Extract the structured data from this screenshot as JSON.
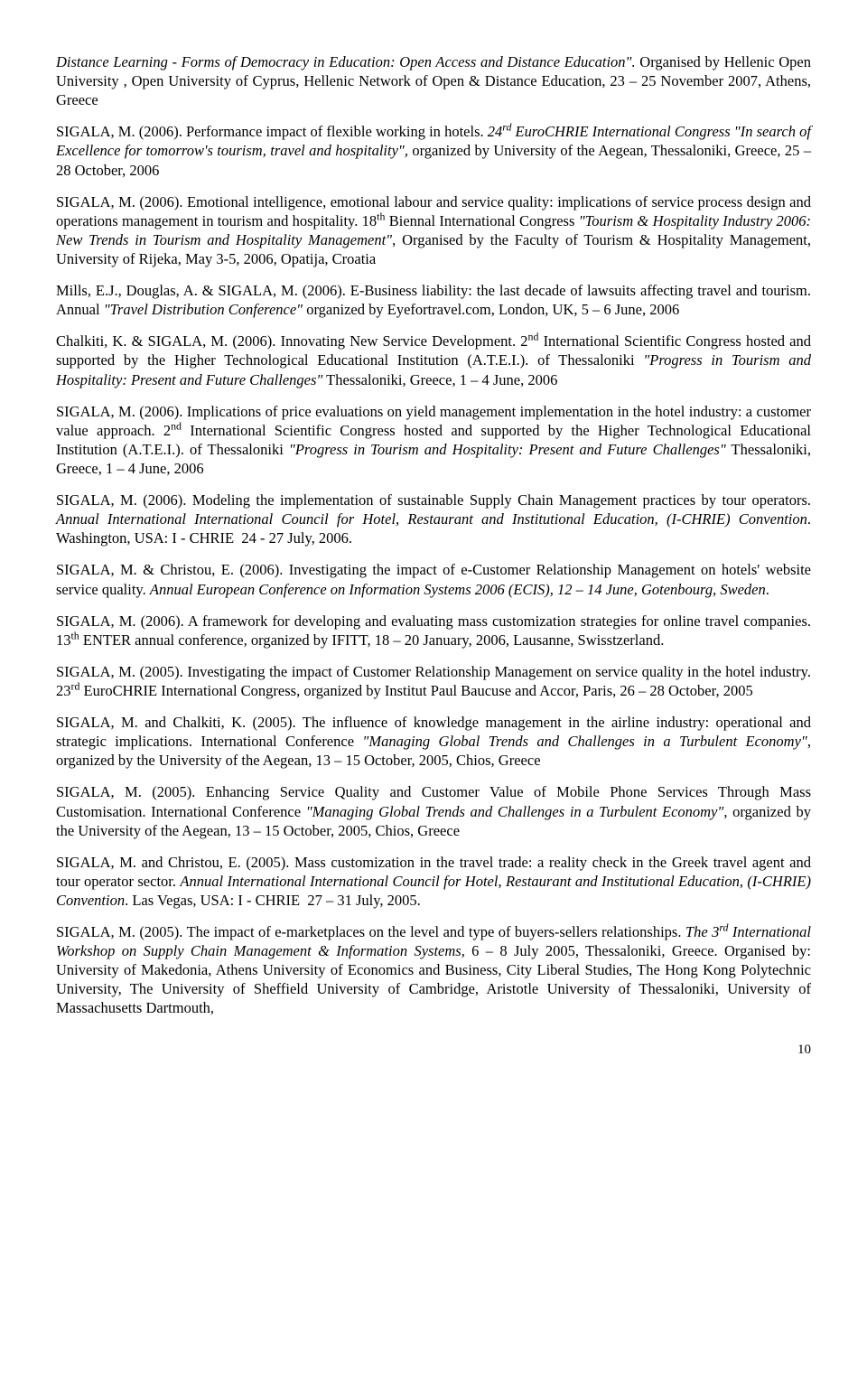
{
  "page_number": "10",
  "paragraphs": [
    {
      "html": "<span class=\"italic\">Distance Learning - Forms of Democracy in Education: Open Access and Distance Education\".</span> Organised by Hellenic Open University , Open University of Cyprus, Hellenic Network of Open & Distance Education, 23 – 25 November 2007, Athens, Greece"
    },
    {
      "html": "SIGALA, M. (2006). Performance impact of flexible working in hotels. <span class=\"italic\">24<sup>rd</sup> EuroCHRIE International Congress \"In search of Excellence for tomorrow's tourism, travel and hospitality\",</span> organized by University of the Aegean, Thessaloniki, Greece, 25 – 28 October, 2006"
    },
    {
      "html": "SIGALA, M. (2006). Emotional intelligence, emotional labour and service quality: implications of service process design and operations management in tourism and hospitality. 18<sup>th</sup> Biennal International Congress <span class=\"italic\">\"Tourism &amp; Hospitality Industry 2006: New Trends in Tourism and Hospitality Management\"</span>, Organised by the Faculty of Tourism & Hospitality Management, University of Rijeka, May 3-5, 2006, Opatija, Croatia"
    },
    {
      "html": "Mills, E.J., Douglas, A. & SIGALA, M. (2006). E-Business liability: the last decade of lawsuits affecting travel and tourism. Annual <span class=\"italic\">\"Travel Distribution Conference\"</span> organized by Eyefortravel.com, London, UK, 5 – 6 June, 2006"
    },
    {
      "html": "Chalkiti, K. & SIGALA, M. (2006). Innovating New Service Development. 2<sup>nd</sup> International Scientific Congress hosted and supported by the Higher Technological Educational Institution (A.T.E.I.). of Thessaloniki <span class=\"italic\">\"Progress in Tourism and Hospitality: Present and Future Challenges\"</span> Thessaloniki, Greece, 1 – 4 June, 2006"
    },
    {
      "html": "SIGALA, M. (2006). Implications of price evaluations on yield management implementation in the hotel industry: a customer value approach. 2<sup>nd</sup> International Scientific Congress hosted and supported by the Higher Technological Educational Institution (A.T.E.I.). of Thessaloniki <span class=\"italic\">\"Progress in Tourism and Hospitality: Present and Future Challenges\"</span> Thessaloniki, Greece, 1 – 4 June, 2006"
    },
    {
      "html": "SIGALA, M. (2006). Modeling the implementation of sustainable Supply Chain Management practices by tour operators. <span class=\"italic\">Annual International International Council for Hotel, Restaurant and Institutional Education, (I-CHRIE) Convention</span>. Washington, USA: I - CHRIE&nbsp;&nbsp;24 - 27 July, 2006."
    },
    {
      "html": "SIGALA, M. & Christou, E. (2006). Investigating the impact of e-Customer Relationship Management on hotels' website service quality. <span class=\"italic\">Annual European Conference on Information Systems 2006 (ECIS), 12 – 14 June, Gotenbourg, Sweden</span>."
    },
    {
      "html": "SIGALA, M. (2006). A framework for developing and evaluating mass customization strategies for online travel companies. 13<sup>th</sup> ENTER annual conference, organized by IFITT, 18 – 20 January, 2006, Lausanne, Swisstzerland."
    },
    {
      "html": "SIGALA, M. (2005). Investigating the impact of Customer Relationship Management on service quality in the hotel industry. 23<sup>rd</sup> EuroCHRIE International Congress, organized by Institut Paul Baucuse and Accor, Paris, 26 – 28 October, 2005"
    },
    {
      "html": "SIGALA, M. and Chalkiti, K. (2005). The influence of knowledge management in the airline industry: operational and strategic implications. International Conference <span class=\"italic\">\"Managing Global Trends and Challenges in a Turbulent Economy\"</span>, organized by the University of the Aegean, 13 – 15 October, 2005, Chios, Greece"
    },
    {
      "html": "SIGALA, M. (2005). Enhancing Service Quality and Customer Value of Mobile Phone Services Through Mass Customisation. International Conference <span class=\"italic\">\"Managing Global Trends and Challenges in a Turbulent Economy\"</span>, organized by the University of the Aegean, 13 – 15 October, 2005, Chios, Greece"
    },
    {
      "html": "SIGALA, M. and Christou, E. (2005). Mass customization in the travel trade: a reality check in the Greek travel agent and tour operator sector. <span class=\"italic\">Annual International International Council for Hotel, Restaurant and Institutional Education, (I-CHRIE) Convention</span>. Las Vegas, USA: I - CHRIE&nbsp;&nbsp;27 – 31 July, 2005."
    },
    {
      "html": "SIGALA, M. (2005). The impact of e-marketplaces on the level and type of buyers-sellers relationships. <span class=\"italic\">The 3<sup>rd</sup> International Workshop on Supply Chain Management &amp; Information Systems</span>, 6 – 8 July 2005, Thessaloniki, Greece. Organised by: University of Makedonia, Athens University of Economics and Business, City Liberal Studies, The Hong Kong Polytechnic University, The University of Sheffield University of Cambridge, Aristotle University of Thessaloniki, University of Massachusetts Dartmouth,"
    }
  ]
}
